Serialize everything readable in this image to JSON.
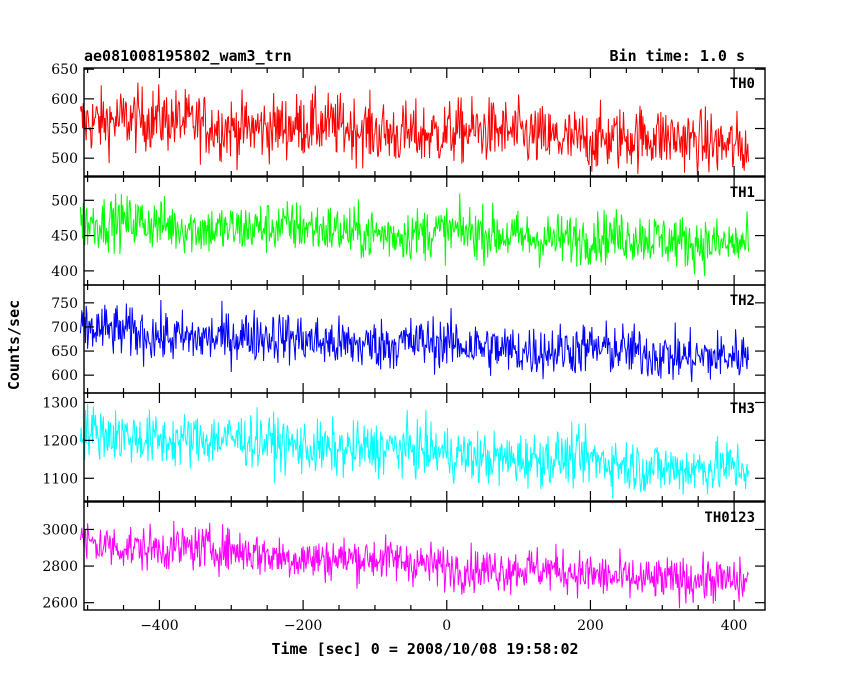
{
  "header": {
    "title": "ae081008195802_wam3_trn",
    "bin_time": "Bin time: 1.0 s"
  },
  "ylabel": "Counts/sec",
  "xlabel": "Time [sec] 0 = 2008/10/08 19:58:02",
  "chart_data": {
    "type": "line",
    "x_range": [
      -510,
      420
    ],
    "xlim": [
      -505,
      443
    ],
    "xticks": [
      -400,
      -200,
      0,
      200,
      400
    ],
    "panels": [
      {
        "name": "TH0",
        "color": "#ff0000",
        "ylim": [
          470,
          652
        ],
        "yticks": [
          500,
          550,
          600,
          650
        ],
        "start": 565,
        "end": 525,
        "noise": 38
      },
      {
        "name": "TH1",
        "color": "#00ff00",
        "ylim": [
          380,
          533
        ],
        "yticks": [
          400,
          450,
          500
        ],
        "start": 468,
        "end": 440,
        "noise": 26
      },
      {
        "name": "TH2",
        "color": "#0000ff",
        "ylim": [
          563,
          787
        ],
        "yticks": [
          600,
          650,
          700,
          750
        ],
        "start": 690,
        "end": 638,
        "noise": 38
      },
      {
        "name": "TH3",
        "color": "#00ffff",
        "ylim": [
          1040,
          1325
        ],
        "yticks": [
          1100,
          1200,
          1300
        ],
        "start": 1220,
        "end": 1120,
        "noise": 50
      },
      {
        "name": "TH0123",
        "color": "#ff00ff",
        "ylim": [
          2560,
          3150
        ],
        "yticks": [
          2600,
          2800,
          3000
        ],
        "start": 2930,
        "end": 2700,
        "noise": 85
      }
    ]
  }
}
